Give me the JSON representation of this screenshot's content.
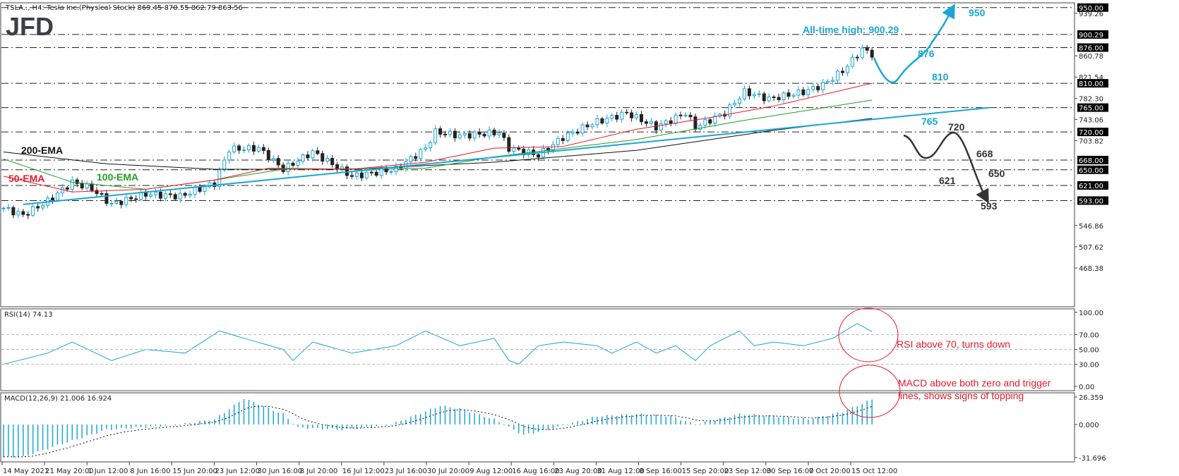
{
  "header": {
    "symbol_line": "TSLA.., H4:  Tesla Inc.(Physical Stock)  869.45 870.55 862.79 863.56",
    "logo": "JFD"
  },
  "colors": {
    "candle_up": "#1aa6d6",
    "candle_down": "#222222",
    "ema50": "#e8192c",
    "ema100": "#22a022",
    "ema200": "#111111",
    "trendline": "#1aa6d6",
    "annotation_blue": "#1aa6d6",
    "annotation_black": "#333333",
    "callout": "#e8192c"
  },
  "chart_data": {
    "type": "candlestick",
    "title": "TSLA.., H4: Tesla Inc.(Physical Stock)",
    "ohlc_last": {
      "open": 869.45,
      "high": 870.55,
      "low": 862.79,
      "close": 863.56
    },
    "price_axis": {
      "range": [
        445,
        955
      ],
      "ticks": [
        "939.26",
        "860.78",
        "821.54",
        "782.30",
        "743.06",
        "703.82",
        "546.86",
        "507.62",
        "468.38"
      ]
    },
    "levels": [
      {
        "value": 950,
        "label": "950.00"
      },
      {
        "value": 900.29,
        "label": "900.29"
      },
      {
        "value": 876,
        "label": "876.00"
      },
      {
        "value": 810,
        "label": "810.00"
      },
      {
        "value": 765,
        "label": "765.00"
      },
      {
        "value": 720,
        "label": "720.00"
      },
      {
        "value": 668,
        "label": "668.00"
      },
      {
        "value": 650,
        "label": "650.00"
      },
      {
        "value": 621,
        "label": "621.00"
      },
      {
        "value": 593,
        "label": "593.00"
      }
    ],
    "time_labels": [
      "14 May 2021",
      "21 May 20:00",
      "1 Jun 12:00",
      "8 Jun 16:00",
      "15 Jun 20:00",
      "23 Jun 12:00",
      "30 Jun 16:00",
      "8 Jul 20:00",
      "16 Jul 12:00",
      "23 Jul 16:00",
      "30 Jul 20:00",
      "9 Aug 12:00",
      "16 Aug 16:00",
      "23 Aug 20:00",
      "31 Aug 12:00",
      "8 Sep 16:00",
      "15 Sep 20:00",
      "23 Sep 12:00",
      "30 Sep 16:00",
      "7 Oct 20:00",
      "15 Oct 12:00"
    ],
    "bars_total": 178,
    "price_path": [
      [
        0,
        579
      ],
      [
        4,
        566
      ],
      [
        9,
        592
      ],
      [
        14,
        627
      ],
      [
        18,
        615
      ],
      [
        22,
        586
      ],
      [
        29,
        605
      ],
      [
        36,
        601
      ],
      [
        43,
        625
      ],
      [
        46,
        688
      ],
      [
        52,
        690
      ],
      [
        57,
        651
      ],
      [
        63,
        683
      ],
      [
        71,
        638
      ],
      [
        80,
        651
      ],
      [
        86,
        690
      ],
      [
        88,
        720
      ],
      [
        93,
        713
      ],
      [
        101,
        719
      ],
      [
        103,
        690
      ],
      [
        109,
        677
      ],
      [
        114,
        710
      ],
      [
        120,
        736
      ],
      [
        127,
        755
      ],
      [
        133,
        729
      ],
      [
        139,
        755
      ],
      [
        141,
        729
      ],
      [
        147,
        755
      ],
      [
        151,
        794
      ],
      [
        156,
        781
      ],
      [
        163,
        794
      ],
      [
        167,
        807
      ],
      [
        171,
        833
      ],
      [
        175,
        873
      ],
      [
        177,
        864
      ]
    ],
    "ema50": [
      [
        0,
        638
      ],
      [
        14,
        609
      ],
      [
        29,
        614
      ],
      [
        43,
        631
      ],
      [
        54,
        653
      ],
      [
        71,
        651
      ],
      [
        86,
        664
      ],
      [
        100,
        690
      ],
      [
        114,
        693
      ],
      [
        129,
        725
      ],
      [
        143,
        745
      ],
      [
        157,
        768
      ],
      [
        177,
        810
      ]
    ],
    "ema100": [
      [
        0,
        670
      ],
      [
        14,
        627
      ],
      [
        29,
        614
      ],
      [
        43,
        631
      ],
      [
        57,
        651
      ],
      [
        86,
        653
      ],
      [
        100,
        674
      ],
      [
        129,
        706
      ],
      [
        150,
        740
      ],
      [
        177,
        779
      ]
    ],
    "ema200": [
      [
        0,
        683
      ],
      [
        21,
        661
      ],
      [
        43,
        651
      ],
      [
        71,
        651
      ],
      [
        100,
        664
      ],
      [
        129,
        686
      ],
      [
        157,
        723
      ],
      [
        177,
        745
      ]
    ],
    "trend_line": [
      [
        4,
        586
      ],
      [
        201,
        765
      ]
    ],
    "rsi": {
      "label": "RSI(14) 74.13",
      "ticks": [
        "100.00",
        "70.00",
        "50.00",
        "30.00",
        "0.00"
      ],
      "levels": [
        70,
        50,
        30
      ],
      "values": [
        [
          0,
          30
        ],
        [
          9,
          45
        ],
        [
          14,
          60
        ],
        [
          22,
          35
        ],
        [
          29,
          50
        ],
        [
          37,
          45
        ],
        [
          44,
          75
        ],
        [
          49,
          65
        ],
        [
          57,
          50
        ],
        [
          59,
          35
        ],
        [
          63,
          60
        ],
        [
          71,
          45
        ],
        [
          80,
          55
        ],
        [
          86,
          75
        ],
        [
          93,
          55
        ],
        [
          100,
          65
        ],
        [
          103,
          35
        ],
        [
          105,
          30
        ],
        [
          109,
          55
        ],
        [
          114,
          60
        ],
        [
          121,
          55
        ],
        [
          124,
          45
        ],
        [
          129,
          60
        ],
        [
          133,
          45
        ],
        [
          137,
          55
        ],
        [
          141,
          35
        ],
        [
          144,
          55
        ],
        [
          150,
          75
        ],
        [
          153,
          55
        ],
        [
          157,
          60
        ],
        [
          163,
          55
        ],
        [
          169,
          65
        ],
        [
          174,
          85
        ],
        [
          177,
          74
        ]
      ]
    },
    "macd": {
      "label": "MACD(12,26,9) 21.006 16.924",
      "ticks": [
        "26.359",
        "0.000",
        "-31.696"
      ],
      "range": [
        -31.696,
        26.359
      ],
      "values": [
        [
          0,
          -31
        ],
        [
          4,
          -31
        ],
        [
          11,
          -20
        ],
        [
          21,
          -5
        ],
        [
          36,
          0
        ],
        [
          43,
          5
        ],
        [
          49,
          25
        ],
        [
          57,
          10
        ],
        [
          60,
          -3
        ],
        [
          69,
          -5
        ],
        [
          79,
          0
        ],
        [
          89,
          18
        ],
        [
          93,
          15
        ],
        [
          100,
          5
        ],
        [
          106,
          -10
        ],
        [
          111,
          -5
        ],
        [
          121,
          8
        ],
        [
          129,
          10
        ],
        [
          136,
          8
        ],
        [
          141,
          0
        ],
        [
          150,
          10
        ],
        [
          157,
          8
        ],
        [
          164,
          5
        ],
        [
          171,
          12
        ],
        [
          177,
          24
        ]
      ]
    }
  },
  "annotations": {
    "all_time_high": "All-time high: 900.29",
    "blue": [
      "950",
      "876",
      "810",
      "765"
    ],
    "black": [
      "720",
      "668",
      "650",
      "621",
      "593"
    ],
    "ema200": "200-EMA",
    "ema100": "100-EMA",
    "ema50": "50-EMA",
    "rsi_note": "RSI above 70, turns down",
    "macd_note_1": "MACD above both zero and trigger",
    "macd_note_2": "lines, shows signs of topping"
  }
}
